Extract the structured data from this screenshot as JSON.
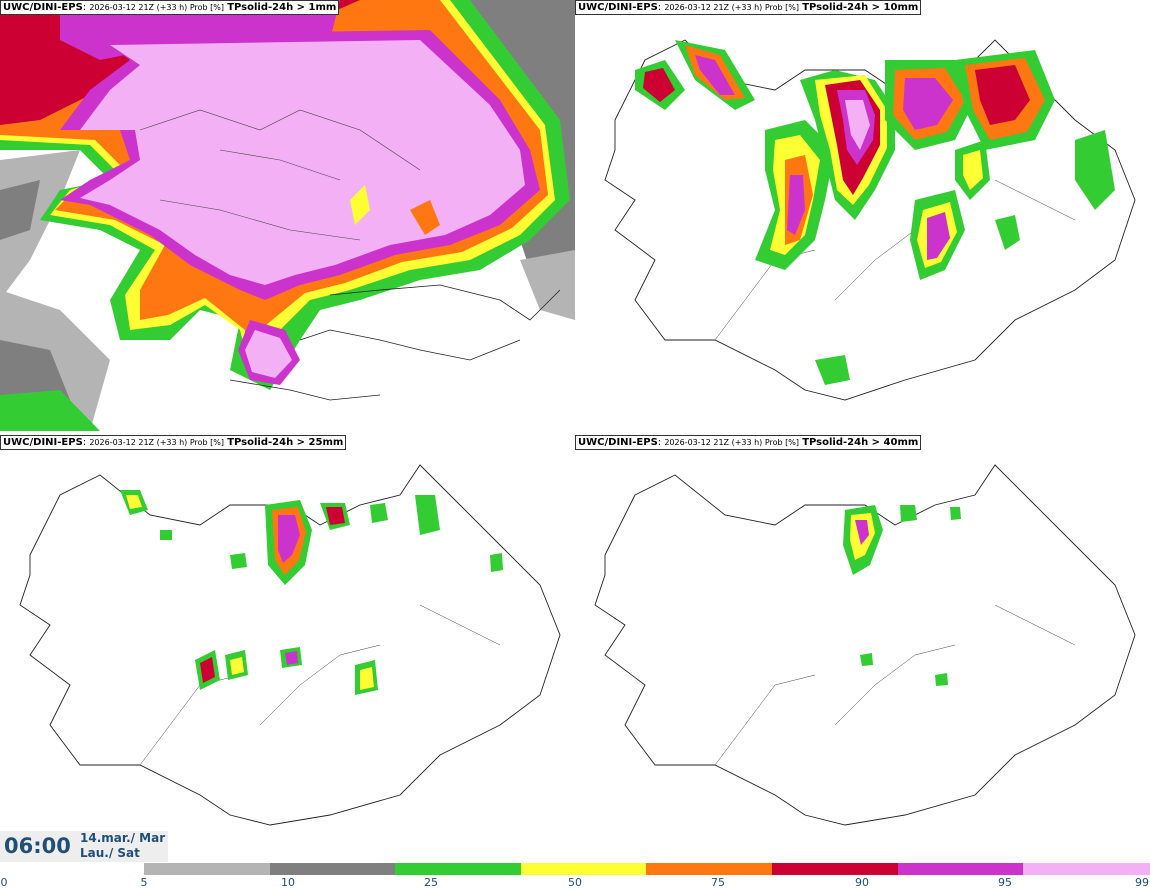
{
  "panels": [
    {
      "model": "UWC/DINI-EPS",
      "sep": ":",
      "run": "2026-03-12 21Z (+33 h) Prob [%]",
      "field": "TPsolid-24h > 1mm"
    },
    {
      "model": "UWC/DINI-EPS",
      "sep": ":",
      "run": "2026-03-12 21Z (+33 h) Prob [%]",
      "field": "TPsolid-24h > 10mm"
    },
    {
      "model": "UWC/DINI-EPS",
      "sep": ":",
      "run": "2026-03-12 21Z (+33 h) Prob [%]",
      "field": "TPsolid-24h > 25mm"
    },
    {
      "model": "UWC/DINI-EPS",
      "sep": ":",
      "run": "2026-03-12 21Z (+33 h) Prob [%]",
      "field": "TPsolid-24h > 40mm"
    }
  ],
  "valid": {
    "time": "06:00",
    "date_line1": "14.mar./ Mar",
    "date_line2": "Lau./ Sat"
  },
  "colorbar": {
    "ticks": [
      "0",
      "5",
      "10",
      "25",
      "50",
      "75",
      "90",
      "95",
      "99"
    ],
    "colors": [
      "#b4b4b4",
      "#7f7f7f",
      "#33cc33",
      "#ffff33",
      "#ff7711",
      "#cc0033",
      "#cc33cc",
      "#f4b0f4"
    ]
  },
  "colors": {
    "outline": "#222222",
    "background": "#ffffff"
  }
}
